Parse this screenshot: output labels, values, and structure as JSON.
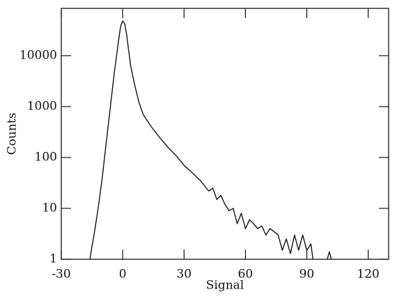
{
  "chart_data": {
    "type": "line",
    "xlabel": "Signal",
    "ylabel": "Counts",
    "color": "#111111",
    "log_y": true,
    "xlim": [
      -30,
      130
    ],
    "ylim": [
      1,
      85000
    ],
    "xticks": [
      -30,
      0,
      30,
      60,
      90,
      120
    ],
    "yticks": [
      1,
      10,
      100,
      1000,
      10000
    ],
    "x": [
      -16,
      -15,
      -14,
      -12,
      -10,
      -8,
      -6,
      -4,
      -2,
      -1,
      0,
      1,
      2,
      3,
      4,
      6,
      8,
      10,
      14,
      18,
      22,
      26,
      30,
      34,
      38,
      42,
      44,
      46,
      48,
      50,
      52,
      54,
      56,
      58,
      60,
      62,
      64,
      66,
      68,
      70,
      72,
      74,
      76,
      78,
      80,
      82,
      84,
      86,
      88,
      90,
      92,
      93,
      95,
      100,
      101,
      102
    ],
    "values": [
      1,
      1.8,
      3,
      10,
      40,
      200,
      1000,
      5000,
      20000,
      38000,
      48000,
      42000,
      25000,
      12000,
      6000,
      2500,
      1200,
      700,
      400,
      250,
      160,
      110,
      70,
      50,
      35,
      22,
      25,
      15,
      18,
      12,
      9,
      10,
      5,
      8,
      4,
      6,
      5,
      4,
      4.5,
      3,
      4,
      3.5,
      3,
      1.5,
      2.5,
      1.3,
      3,
      1.5,
      3,
      1.5,
      2,
      1,
      null,
      1,
      1.4,
      1
    ]
  }
}
